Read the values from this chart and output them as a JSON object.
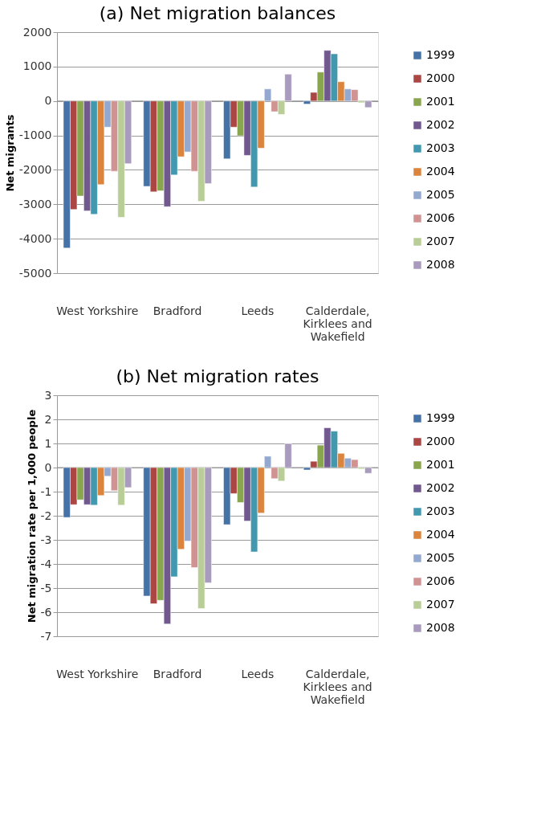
{
  "chart_data": [
    {
      "type": "bar",
      "title": "(a) Net migration balances",
      "ylabel": "Net migrants",
      "categories": [
        "West Yorkshire",
        "Bradford",
        "Leeds",
        "Calderdale, Kirklees and Wakefield"
      ],
      "ylim": [
        -5000,
        2000
      ],
      "yticks": [
        -5000,
        -4000,
        -3000,
        -2000,
        -1000,
        0,
        1000,
        2000
      ],
      "grid": "y",
      "legend": "right",
      "series": [
        {
          "name": "1999",
          "color": "#4572a7",
          "values": [
            -4270,
            -2480,
            -1680,
            -90
          ]
        },
        {
          "name": "2000",
          "color": "#aa4643",
          "values": [
            -3150,
            -2640,
            -760,
            250
          ]
        },
        {
          "name": "2001",
          "color": "#89a54e",
          "values": [
            -2760,
            -2610,
            -1010,
            840
          ]
        },
        {
          "name": "2002",
          "color": "#71588f",
          "values": [
            -3190,
            -3070,
            -1580,
            1470
          ]
        },
        {
          "name": "2003",
          "color": "#4198af",
          "values": [
            -3290,
            -2150,
            -2500,
            1370
          ]
        },
        {
          "name": "2004",
          "color": "#db843d",
          "values": [
            -2430,
            -1620,
            -1370,
            560
          ]
        },
        {
          "name": "2005",
          "color": "#93a9cf",
          "values": [
            -760,
            -1480,
            350,
            350
          ]
        },
        {
          "name": "2006",
          "color": "#d19392",
          "values": [
            -2040,
            -2040,
            -310,
            330
          ]
        },
        {
          "name": "2007",
          "color": "#b9cd96",
          "values": [
            -3380,
            -2910,
            -390,
            -50
          ]
        },
        {
          "name": "2008",
          "color": "#a99bbd",
          "values": [
            -1820,
            -2400,
            780,
            -190
          ]
        }
      ]
    },
    {
      "type": "bar",
      "title": "(b) Net migration rates",
      "ylabel": "Net migration rate per 1,000 people",
      "categories": [
        "West Yorkshire",
        "Bradford",
        "Leeds",
        "Calderdale, Kirklees and Wakefield"
      ],
      "ylim": [
        -7,
        3
      ],
      "yticks": [
        -7,
        -6,
        -5,
        -4,
        -3,
        -2,
        -1,
        0,
        1,
        2,
        3
      ],
      "grid": "y",
      "legend": "right",
      "series": [
        {
          "name": "1999",
          "color": "#4572a7",
          "values": [
            -2.07,
            -5.33,
            -2.37,
            -0.1
          ]
        },
        {
          "name": "2000",
          "color": "#aa4643",
          "values": [
            -1.54,
            -5.65,
            -1.08,
            0.26
          ]
        },
        {
          "name": "2001",
          "color": "#89a54e",
          "values": [
            -1.34,
            -5.51,
            -1.45,
            0.93
          ]
        },
        {
          "name": "2002",
          "color": "#71588f",
          "values": [
            -1.54,
            -6.49,
            -2.22,
            1.65
          ]
        },
        {
          "name": "2003",
          "color": "#4198af",
          "values": [
            -1.56,
            -4.53,
            -3.5,
            1.51
          ]
        },
        {
          "name": "2004",
          "color": "#db843d",
          "values": [
            -1.16,
            -3.39,
            -1.89,
            0.59
          ]
        },
        {
          "name": "2005",
          "color": "#93a9cf",
          "values": [
            -0.36,
            -3.05,
            0.47,
            0.39
          ]
        },
        {
          "name": "2006",
          "color": "#d19392",
          "values": [
            -0.96,
            -4.15,
            -0.46,
            0.33
          ]
        },
        {
          "name": "2007",
          "color": "#b9cd96",
          "values": [
            -1.56,
            -5.85,
            -0.56,
            -0.06
          ]
        },
        {
          "name": "2008",
          "color": "#a99bbd",
          "values": [
            -0.83,
            -4.78,
            0.99,
            -0.24
          ]
        }
      ]
    }
  ]
}
